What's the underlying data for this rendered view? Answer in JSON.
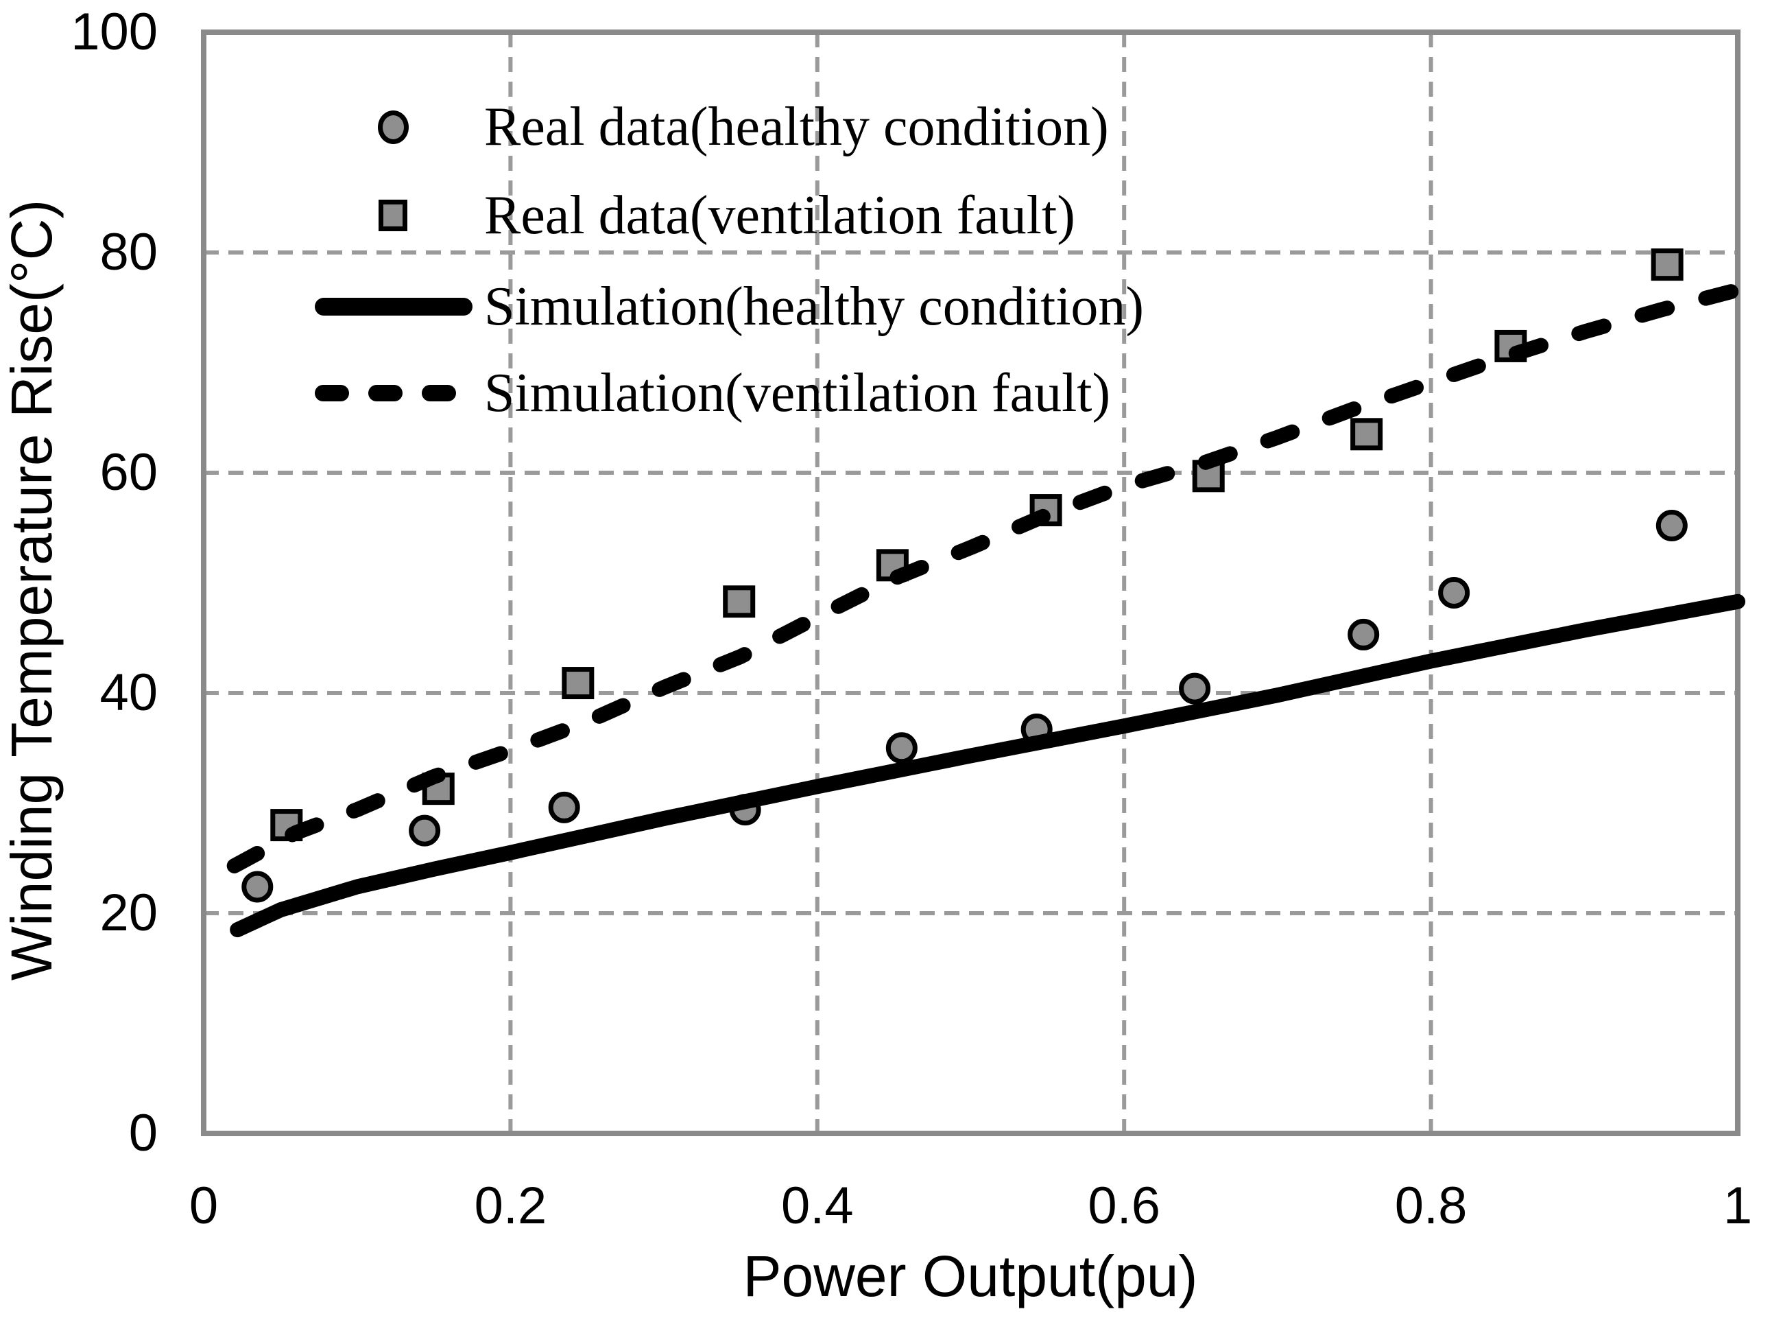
{
  "figure": {
    "background": "#ffffff"
  },
  "axes": {
    "x_title": "Power Output(pu)",
    "y_title": "Winding Temperature  Rise(°C)",
    "x_tick_labels": [
      "0",
      "0.2",
      "0.4",
      "0.6",
      "0.8",
      "1"
    ],
    "y_tick_labels": [
      "0",
      "20",
      "40",
      "60",
      "80",
      "100"
    ]
  },
  "legend": {
    "items": [
      {
        "label": "Real data(healthy condition)",
        "marker": "circle"
      },
      {
        "label": "Real data(ventilation fault)",
        "marker": "square"
      },
      {
        "label": "Simulation(healthy condition)",
        "marker": "solid-line"
      },
      {
        "label": "Simulation(ventilation fault)",
        "marker": "dashed-line"
      }
    ]
  },
  "colors": {
    "marker_fill": "#8f8f8f",
    "marker_stroke": "#000000",
    "line": "#000000",
    "grid": "#9a9a9a",
    "frame": "#8a8a8a",
    "text": "#000000"
  },
  "chart_data": {
    "type": "scatter",
    "title": "",
    "xlabel": "Power Output(pu)",
    "ylabel": "Winding Temperature Rise(°C)",
    "xlim": [
      0,
      1
    ],
    "ylim": [
      0,
      100
    ],
    "x_tick_values": [
      0,
      0.2,
      0.4,
      0.6,
      0.8,
      1
    ],
    "y_tick_values": [
      0,
      20,
      40,
      60,
      80,
      100
    ],
    "grid": true,
    "legend_position": "upper-left-inside",
    "series": [
      {
        "name": "Real data(healthy condition)",
        "kind": "scatter",
        "marker": "circle",
        "points": [
          [
            0.035,
            22.4
          ],
          [
            0.144,
            27.5
          ],
          [
            0.235,
            29.6
          ],
          [
            0.353,
            29.4
          ],
          [
            0.455,
            35.0
          ],
          [
            0.543,
            36.7
          ],
          [
            0.646,
            40.4
          ],
          [
            0.756,
            45.3
          ],
          [
            0.815,
            49.1
          ],
          [
            0.957,
            55.2
          ]
        ]
      },
      {
        "name": "Real data(ventilation fault)",
        "kind": "scatter",
        "marker": "square",
        "points": [
          [
            0.054,
            28.0
          ],
          [
            0.153,
            31.3
          ],
          [
            0.244,
            40.9
          ],
          [
            0.349,
            48.3
          ],
          [
            0.449,
            51.6
          ],
          [
            0.549,
            56.6
          ],
          [
            0.655,
            59.7
          ],
          [
            0.758,
            63.5
          ],
          [
            0.852,
            71.5
          ],
          [
            0.954,
            78.9
          ]
        ]
      },
      {
        "name": "Simulation(healthy condition)",
        "kind": "line",
        "style": "solid",
        "points": [
          [
            0.022,
            18.5
          ],
          [
            0.05,
            20.3
          ],
          [
            0.1,
            22.4
          ],
          [
            0.15,
            24.0
          ],
          [
            0.2,
            25.5
          ],
          [
            0.3,
            28.6
          ],
          [
            0.4,
            31.5
          ],
          [
            0.5,
            34.3
          ],
          [
            0.6,
            37.0
          ],
          [
            0.7,
            39.8
          ],
          [
            0.8,
            42.9
          ],
          [
            0.9,
            45.7
          ],
          [
            1.0,
            48.3
          ]
        ]
      },
      {
        "name": "Simulation(ventilation fault)",
        "kind": "line",
        "style": "dashed",
        "points": [
          [
            0.02,
            24.3
          ],
          [
            0.06,
            27.3
          ],
          [
            0.1,
            29.4
          ],
          [
            0.15,
            32.4
          ],
          [
            0.2,
            34.8
          ],
          [
            0.25,
            37.4
          ],
          [
            0.3,
            40.5
          ],
          [
            0.35,
            43.3
          ],
          [
            0.4,
            46.9
          ],
          [
            0.45,
            50.4
          ],
          [
            0.5,
            53.2
          ],
          [
            0.55,
            56.2
          ],
          [
            0.6,
            58.8
          ],
          [
            0.65,
            60.8
          ],
          [
            0.7,
            63.2
          ],
          [
            0.75,
            65.8
          ],
          [
            0.8,
            68.2
          ],
          [
            0.85,
            70.6
          ],
          [
            0.9,
            72.8
          ],
          [
            0.95,
            74.8
          ],
          [
            1.0,
            76.6
          ]
        ]
      }
    ]
  }
}
